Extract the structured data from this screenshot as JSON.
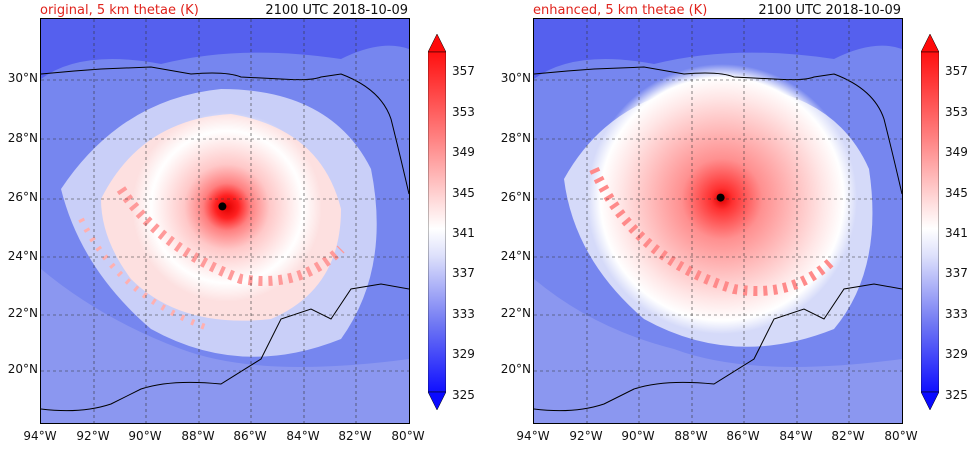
{
  "panels": [
    {
      "title": "original, 5 km thetae (K)",
      "time": "2100 UTC 2018-10-09",
      "center_marker": {
        "lon": -87.1,
        "lat": 25.7
      }
    },
    {
      "title": "enhanced, 5 km thetae (K)",
      "time": "2100 UTC 2018-10-09",
      "center_marker": {
        "lon": -86.9,
        "lat": 26.0
      }
    }
  ],
  "axes": {
    "lat_labels": [
      "30°N",
      "28°N",
      "26°N",
      "24°N",
      "22°N",
      "20°N"
    ],
    "lon_labels": [
      "94°W",
      "92°W",
      "90°W",
      "88°W",
      "86°W",
      "84°W",
      "82°W",
      "80°W"
    ]
  },
  "colorbar": {
    "labels": [
      "357",
      "353",
      "349",
      "345",
      "341",
      "337",
      "333",
      "329",
      "325"
    ],
    "colors": {
      "lowest": "#0a0aff",
      "low": "#6b70f5",
      "neutral": "#ffffff",
      "high": "#ff8a8a",
      "highest": "#ff0a0a"
    }
  }
}
